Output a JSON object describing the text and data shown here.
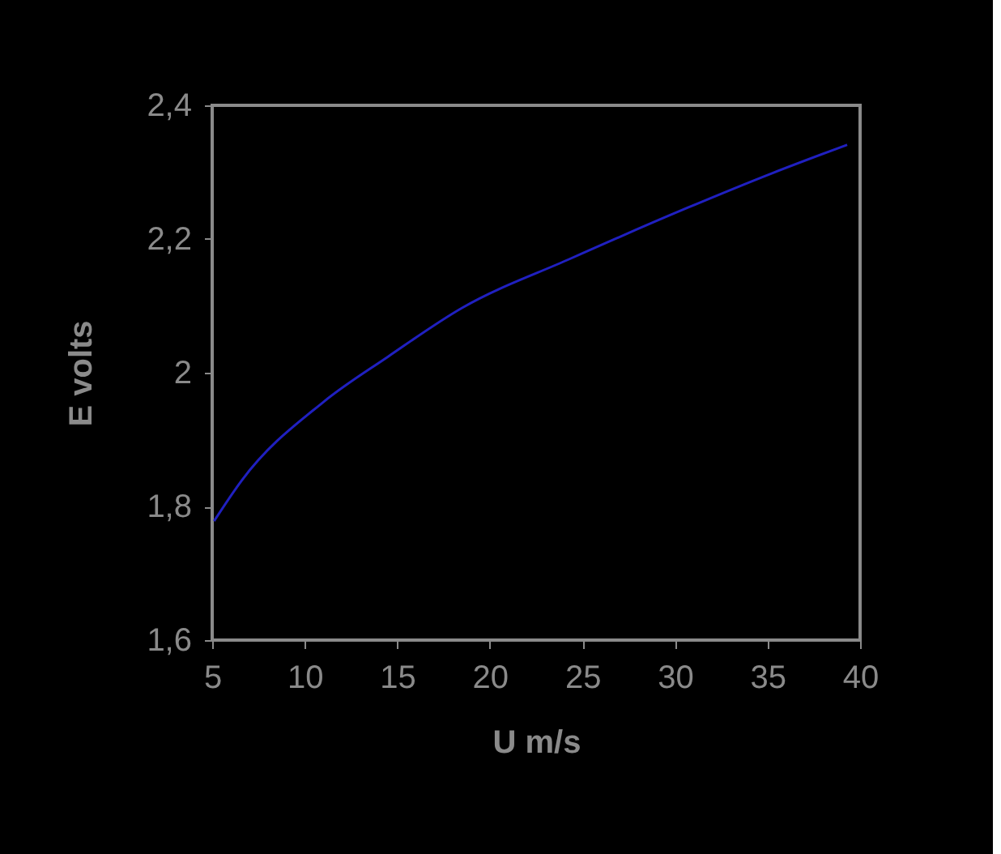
{
  "chart_data": {
    "type": "line",
    "xlabel": "U m/s",
    "ylabel": "E volts",
    "x": [
      5.1,
      6.6,
      11.0,
      14.5,
      18.5,
      24.3,
      30.7,
      35.3,
      39.3
    ],
    "series": [
      {
        "color": "#2020c0",
        "values": [
          1.778,
          1.839,
          1.956,
          2.024,
          2.097,
          2.17,
          2.247,
          2.299,
          2.341
        ]
      }
    ],
    "xlim": [
      5,
      40
    ],
    "xticks": [
      5,
      10,
      15,
      20,
      25,
      30,
      35,
      40
    ],
    "ylim": [
      1.6,
      2.4
    ],
    "yticks": [
      {
        "value": 1.6,
        "label": "1,6"
      },
      {
        "value": 1.8,
        "label": "1,8"
      },
      {
        "value": 2.0,
        "label": "2"
      },
      {
        "value": 2.2,
        "label": "2,2"
      },
      {
        "value": 2.4,
        "label": "2,4"
      }
    ],
    "grid": false,
    "marker": "none",
    "line_style": "solid"
  }
}
